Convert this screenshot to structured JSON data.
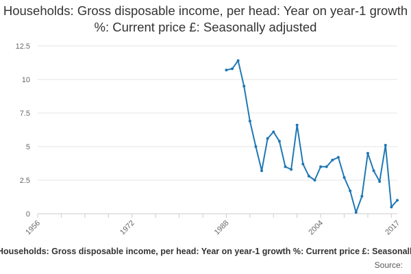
{
  "chart_data": {
    "type": "line",
    "title": "Households: Gross disposable income, per head: Year on year-1 growth %: Current price £: Seasonally adjusted",
    "xlabel": "",
    "ylabel": "",
    "xlim": [
      1956,
      2017
    ],
    "ylim": [
      0,
      12.5
    ],
    "x_ticks": [
      "1956",
      "1972",
      "1988",
      "2004",
      "2017"
    ],
    "y_ticks": [
      "0",
      "2.5",
      "5",
      "7.5",
      "10",
      "12.5"
    ],
    "grid": true,
    "series": [
      {
        "name": "Households: Gross disposable income, per head: Year on year-1 growth %: Current price £: Seasonally adjusted",
        "color": "#1f77b4",
        "points": [
          {
            "x": 1988,
            "y": 10.7
          },
          {
            "x": 1989,
            "y": 10.8
          },
          {
            "x": 1990,
            "y": 11.4
          },
          {
            "x": 1991,
            "y": 9.5
          },
          {
            "x": 1992,
            "y": 6.9
          },
          {
            "x": 1993,
            "y": 5.0
          },
          {
            "x": 1994,
            "y": 3.2
          },
          {
            "x": 1995,
            "y": 5.6
          },
          {
            "x": 1996,
            "y": 6.1
          },
          {
            "x": 1997,
            "y": 5.4
          },
          {
            "x": 1998,
            "y": 3.5
          },
          {
            "x": 1999,
            "y": 3.3
          },
          {
            "x": 2000,
            "y": 6.6
          },
          {
            "x": 2001,
            "y": 3.7
          },
          {
            "x": 2002,
            "y": 2.8
          },
          {
            "x": 2003,
            "y": 2.5
          },
          {
            "x": 2004,
            "y": 3.5
          },
          {
            "x": 2005,
            "y": 3.5
          },
          {
            "x": 2006,
            "y": 4.0
          },
          {
            "x": 2007,
            "y": 4.2
          },
          {
            "x": 2008,
            "y": 2.7
          },
          {
            "x": 2009,
            "y": 1.7
          },
          {
            "x": 2010,
            "y": 0.1
          },
          {
            "x": 2011,
            "y": 1.3
          },
          {
            "x": 2012,
            "y": 4.5
          },
          {
            "x": 2013,
            "y": 3.2
          },
          {
            "x": 2014,
            "y": 2.4
          },
          {
            "x": 2015,
            "y": 5.1
          },
          {
            "x": 2016,
            "y": 0.5
          },
          {
            "x": 2017,
            "y": 1.0
          }
        ]
      }
    ],
    "legend_text": "Households: Gross disposable income, per head: Year on year-1 growth %: Current price £: Seasonally adjusted",
    "source_label": "Source:"
  }
}
